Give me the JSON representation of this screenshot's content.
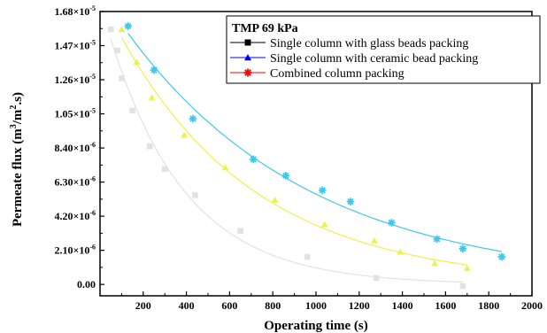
{
  "chart_data": {
    "type": "scatter",
    "title": "",
    "xlabel": "Operating time (s)",
    "ylabel_parts": [
      "Permeate flux (m",
      "3",
      "/m",
      "2",
      ".s)"
    ],
    "xlim": [
      0,
      2000
    ],
    "ylim": [
      -7e-07,
      1.68e-05
    ],
    "x_ticks": [
      200,
      400,
      600,
      800,
      1000,
      1200,
      1400,
      1600,
      1800,
      2000
    ],
    "x_tick_labels": [
      "200",
      "400",
      "600",
      "800",
      "1000",
      "1200",
      "1400",
      "1600",
      "1800",
      "2000"
    ],
    "y_ticks": [
      {
        "value": 0,
        "mantissa": "0.00",
        "exp": ""
      },
      {
        "value": 2.1e-06,
        "mantissa": "2.10×10",
        "exp": "-6"
      },
      {
        "value": 4.2e-06,
        "mantissa": "4.20×10",
        "exp": "-6"
      },
      {
        "value": 6.3e-06,
        "mantissa": "6.30×10",
        "exp": "-6"
      },
      {
        "value": 8.4e-06,
        "mantissa": "8.40×10",
        "exp": "-6"
      },
      {
        "value": 1.05e-05,
        "mantissa": "1.05×10",
        "exp": "-5"
      },
      {
        "value": 1.26e-05,
        "mantissa": "1.26×10",
        "exp": "-5"
      },
      {
        "value": 1.47e-05,
        "mantissa": "1.47×10",
        "exp": "-5"
      },
      {
        "value": 1.68e-05,
        "mantissa": "1.68×10",
        "exp": "-5"
      }
    ],
    "legend": {
      "title": "TMP 69 kPa",
      "placement": "top-right"
    },
    "series": [
      {
        "name": "Single column with glass beads packing",
        "marker": "square",
        "legend_color": "#000000",
        "color": "#e2e2e2",
        "x": [
          50,
          80,
          100,
          150,
          230,
          300,
          440,
          650,
          960,
          1280,
          1680
        ],
        "y": [
          1.57e-05,
          1.44e-05,
          1.27e-05,
          1.07e-05,
          8.5e-06,
          7.1e-06,
          5.5e-06,
          3.3e-06,
          1.7e-06,
          4e-07,
          -1e-07
        ]
      },
      {
        "name": "Single column with ceramic bead packing",
        "marker": "triangle",
        "legend_color": "#0000ff",
        "color": "#f0f04a",
        "x": [
          100,
          170,
          240,
          390,
          580,
          810,
          1040,
          1270,
          1390,
          1550,
          1700
        ],
        "y": [
          1.57e-05,
          1.37e-05,
          1.15e-05,
          9.2e-06,
          7.2e-06,
          5.2e-06,
          3.7e-06,
          2.7e-06,
          2e-06,
          1.3e-06,
          1e-06
        ]
      },
      {
        "name": "Combined column packing",
        "marker": "star",
        "legend_color": "#ff0000",
        "color": "#3ec9ec",
        "x": [
          130,
          250,
          430,
          710,
          860,
          1030,
          1160,
          1350,
          1560,
          1680,
          1860
        ],
        "y": [
          1.59e-05,
          1.32e-05,
          1.02e-05,
          7.7e-06,
          6.7e-06,
          5.8e-06,
          5.1e-06,
          3.8e-06,
          2.8e-06,
          2.2e-06,
          1.7e-06
        ]
      }
    ]
  }
}
